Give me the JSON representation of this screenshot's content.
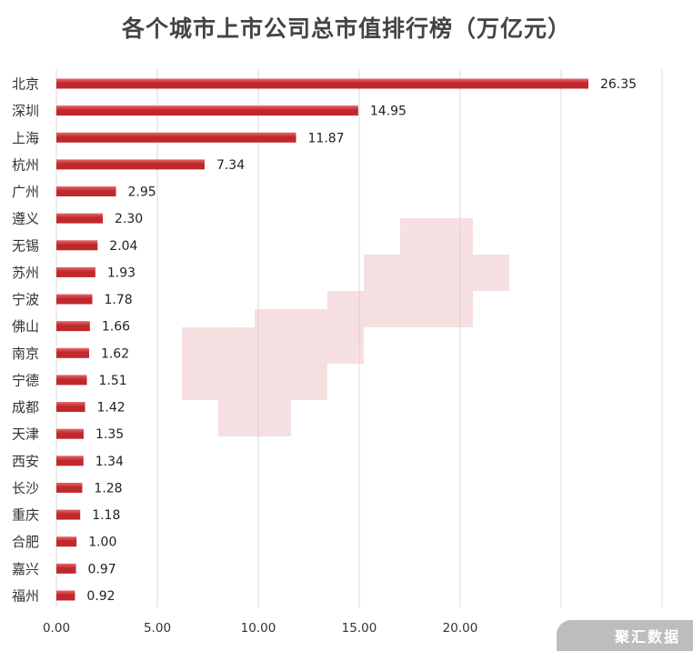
{
  "chart_data": {
    "type": "bar",
    "orientation": "horizontal",
    "title": "各个城市上市公司总市值排行榜（万亿元）",
    "categories": [
      "北京",
      "深圳",
      "上海",
      "杭州",
      "广州",
      "遵义",
      "无锡",
      "苏州",
      "宁波",
      "佛山",
      "南京",
      "宁德",
      "成都",
      "天津",
      "西安",
      "长沙",
      "重庆",
      "合肥",
      "嘉兴",
      "福州"
    ],
    "values": [
      26.35,
      14.95,
      11.87,
      7.34,
      2.95,
      2.3,
      2.04,
      1.93,
      1.78,
      1.66,
      1.62,
      1.51,
      1.42,
      1.35,
      1.34,
      1.28,
      1.18,
      1.0,
      0.97,
      0.92
    ],
    "value_labels": [
      "26.35",
      "14.95",
      "11.87",
      "7.34",
      "2.95",
      "2.30",
      "2.04",
      "1.93",
      "1.78",
      "1.66",
      "1.62",
      "1.51",
      "1.42",
      "1.35",
      "1.34",
      "1.28",
      "1.18",
      "1.00",
      "0.97",
      "0.92"
    ],
    "xlim": [
      0,
      30
    ],
    "x_ticks": [
      0,
      5,
      10,
      15,
      20,
      25,
      30
    ],
    "x_tick_labels": [
      "0.00",
      "5.00",
      "10.00",
      "15.00",
      "20.00",
      "",
      ""
    ],
    "grid": "vertical",
    "legend": "none",
    "bar_color": "#c0282c",
    "bar_highlight": "#e8676a"
  },
  "brand": {
    "text": "聚汇数据"
  }
}
